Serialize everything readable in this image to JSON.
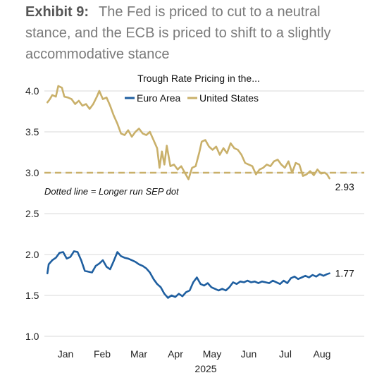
{
  "exhibit": {
    "label": "Exhibit 9:",
    "caption": "The Fed is priced to cut to a neutral stance, and the ECB is priced to shift to a slightly accommodative stance"
  },
  "chart_data": {
    "type": "line",
    "title": "Trough Rate Pricing in the...",
    "xlabel": "2025",
    "ylabel": "",
    "ylim": [
      1.0,
      4.0
    ],
    "y_ticks": [
      "1.0",
      "1.5",
      "2.0",
      "2.5",
      "3.0",
      "3.5",
      "4.0"
    ],
    "x_tick_labels": [
      "Jan",
      "Feb",
      "Mar",
      "Apr",
      "May",
      "Jun",
      "Jul",
      "Aug"
    ],
    "x_range": [
      "2025-01-01",
      "2025-08-23"
    ],
    "grid": true,
    "legend_position": "top-center",
    "series": [
      {
        "name": "Euro Area",
        "color": "#1f5fa0",
        "end_label": "1.77",
        "points": [
          [
            "2025-01-01",
            1.77
          ],
          [
            "2025-01-02",
            1.88
          ],
          [
            "2025-01-05",
            1.93
          ],
          [
            "2025-01-08",
            1.96
          ],
          [
            "2025-01-11",
            2.02
          ],
          [
            "2025-01-14",
            2.03
          ],
          [
            "2025-01-17",
            1.95
          ],
          [
            "2025-01-20",
            1.97
          ],
          [
            "2025-01-23",
            2.04
          ],
          [
            "2025-01-26",
            2.03
          ],
          [
            "2025-01-29",
            1.93
          ],
          [
            "2025-02-01",
            1.8
          ],
          [
            "2025-02-04",
            1.79
          ],
          [
            "2025-02-07",
            1.78
          ],
          [
            "2025-02-10",
            1.86
          ],
          [
            "2025-02-13",
            1.89
          ],
          [
            "2025-02-16",
            1.93
          ],
          [
            "2025-02-19",
            1.85
          ],
          [
            "2025-02-22",
            1.82
          ],
          [
            "2025-02-25",
            1.92
          ],
          [
            "2025-02-28",
            2.03
          ],
          [
            "2025-03-03",
            1.98
          ],
          [
            "2025-03-06",
            1.96
          ],
          [
            "2025-03-09",
            1.95
          ],
          [
            "2025-03-12",
            1.93
          ],
          [
            "2025-03-15",
            1.91
          ],
          [
            "2025-03-18",
            1.88
          ],
          [
            "2025-03-21",
            1.86
          ],
          [
            "2025-03-24",
            1.83
          ],
          [
            "2025-03-27",
            1.78
          ],
          [
            "2025-03-30",
            1.7
          ],
          [
            "2025-04-02",
            1.64
          ],
          [
            "2025-04-05",
            1.6
          ],
          [
            "2025-04-08",
            1.52
          ],
          [
            "2025-04-11",
            1.47
          ],
          [
            "2025-04-14",
            1.5
          ],
          [
            "2025-04-17",
            1.48
          ],
          [
            "2025-04-20",
            1.52
          ],
          [
            "2025-04-23",
            1.49
          ],
          [
            "2025-04-26",
            1.54
          ],
          [
            "2025-04-29",
            1.56
          ],
          [
            "2025-05-02",
            1.66
          ],
          [
            "2025-05-05",
            1.72
          ],
          [
            "2025-05-08",
            1.64
          ],
          [
            "2025-05-11",
            1.62
          ],
          [
            "2025-05-14",
            1.65
          ],
          [
            "2025-05-17",
            1.6
          ],
          [
            "2025-05-20",
            1.58
          ],
          [
            "2025-05-23",
            1.56
          ],
          [
            "2025-05-26",
            1.58
          ],
          [
            "2025-05-29",
            1.56
          ],
          [
            "2025-06-01",
            1.6
          ],
          [
            "2025-06-04",
            1.66
          ],
          [
            "2025-06-07",
            1.64
          ],
          [
            "2025-06-10",
            1.67
          ],
          [
            "2025-06-13",
            1.66
          ],
          [
            "2025-06-16",
            1.68
          ],
          [
            "2025-06-19",
            1.66
          ],
          [
            "2025-06-22",
            1.67
          ],
          [
            "2025-06-25",
            1.65
          ],
          [
            "2025-06-28",
            1.67
          ],
          [
            "2025-07-01",
            1.66
          ],
          [
            "2025-07-04",
            1.65
          ],
          [
            "2025-07-07",
            1.68
          ],
          [
            "2025-07-10",
            1.66
          ],
          [
            "2025-07-13",
            1.64
          ],
          [
            "2025-07-16",
            1.68
          ],
          [
            "2025-07-19",
            1.65
          ],
          [
            "2025-07-22",
            1.71
          ],
          [
            "2025-07-25",
            1.73
          ],
          [
            "2025-07-28",
            1.7
          ],
          [
            "2025-07-31",
            1.72
          ],
          [
            "2025-08-03",
            1.74
          ],
          [
            "2025-08-06",
            1.72
          ],
          [
            "2025-08-09",
            1.75
          ],
          [
            "2025-08-12",
            1.73
          ],
          [
            "2025-08-15",
            1.76
          ],
          [
            "2025-08-18",
            1.74
          ],
          [
            "2025-08-21",
            1.76
          ],
          [
            "2025-08-23",
            1.77
          ]
        ]
      },
      {
        "name": "United States",
        "color": "#c9b06a",
        "end_label": "2.93",
        "points": [
          [
            "2025-01-01",
            3.86
          ],
          [
            "2025-01-03",
            3.9
          ],
          [
            "2025-01-05",
            3.95
          ],
          [
            "2025-01-08",
            3.93
          ],
          [
            "2025-01-10",
            4.06
          ],
          [
            "2025-01-13",
            4.04
          ],
          [
            "2025-01-15",
            3.93
          ],
          [
            "2025-01-18",
            3.92
          ],
          [
            "2025-01-21",
            3.9
          ],
          [
            "2025-01-24",
            3.84
          ],
          [
            "2025-01-27",
            3.88
          ],
          [
            "2025-01-30",
            3.82
          ],
          [
            "2025-02-02",
            3.84
          ],
          [
            "2025-02-05",
            3.78
          ],
          [
            "2025-02-08",
            3.84
          ],
          [
            "2025-02-11",
            3.93
          ],
          [
            "2025-02-13",
            4.0
          ],
          [
            "2025-02-16",
            3.9
          ],
          [
            "2025-02-19",
            3.92
          ],
          [
            "2025-02-22",
            3.82
          ],
          [
            "2025-02-25",
            3.7
          ],
          [
            "2025-02-28",
            3.6
          ],
          [
            "2025-03-03",
            3.48
          ],
          [
            "2025-03-06",
            3.46
          ],
          [
            "2025-03-09",
            3.52
          ],
          [
            "2025-03-12",
            3.44
          ],
          [
            "2025-03-15",
            3.5
          ],
          [
            "2025-03-18",
            3.54
          ],
          [
            "2025-03-21",
            3.48
          ],
          [
            "2025-03-24",
            3.46
          ],
          [
            "2025-03-27",
            3.5
          ],
          [
            "2025-03-30",
            3.4
          ],
          [
            "2025-04-02",
            3.3
          ],
          [
            "2025-04-04",
            3.06
          ],
          [
            "2025-04-06",
            3.26
          ],
          [
            "2025-04-08",
            3.1
          ],
          [
            "2025-04-10",
            3.33
          ],
          [
            "2025-04-13",
            3.08
          ],
          [
            "2025-04-16",
            3.1
          ],
          [
            "2025-04-19",
            3.04
          ],
          [
            "2025-04-22",
            3.08
          ],
          [
            "2025-04-25",
            3.0
          ],
          [
            "2025-04-28",
            2.92
          ],
          [
            "2025-05-01",
            3.06
          ],
          [
            "2025-05-04",
            3.08
          ],
          [
            "2025-05-07",
            3.25
          ],
          [
            "2025-05-09",
            3.38
          ],
          [
            "2025-05-12",
            3.4
          ],
          [
            "2025-05-15",
            3.32
          ],
          [
            "2025-05-18",
            3.28
          ],
          [
            "2025-05-21",
            3.32
          ],
          [
            "2025-05-24",
            3.22
          ],
          [
            "2025-05-27",
            3.3
          ],
          [
            "2025-05-30",
            3.24
          ],
          [
            "2025-06-02",
            3.36
          ],
          [
            "2025-06-05",
            3.3
          ],
          [
            "2025-06-08",
            3.28
          ],
          [
            "2025-06-11",
            3.22
          ],
          [
            "2025-06-14",
            3.12
          ],
          [
            "2025-06-17",
            3.1
          ],
          [
            "2025-06-20",
            3.08
          ],
          [
            "2025-06-23",
            2.98
          ],
          [
            "2025-06-26",
            3.04
          ],
          [
            "2025-06-29",
            3.06
          ],
          [
            "2025-07-02",
            3.1
          ],
          [
            "2025-07-05",
            3.08
          ],
          [
            "2025-07-08",
            3.14
          ],
          [
            "2025-07-11",
            3.16
          ],
          [
            "2025-07-14",
            3.1
          ],
          [
            "2025-07-17",
            3.06
          ],
          [
            "2025-07-20",
            3.14
          ],
          [
            "2025-07-23",
            3.0
          ],
          [
            "2025-07-26",
            3.12
          ],
          [
            "2025-07-29",
            3.1
          ],
          [
            "2025-08-01",
            2.96
          ],
          [
            "2025-08-04",
            2.98
          ],
          [
            "2025-08-07",
            3.02
          ],
          [
            "2025-08-10",
            2.97
          ],
          [
            "2025-08-13",
            3.04
          ],
          [
            "2025-08-16",
            2.99
          ],
          [
            "2025-08-19",
            3.0
          ],
          [
            "2025-08-21",
            2.98
          ],
          [
            "2025-08-23",
            2.93
          ]
        ]
      }
    ],
    "reference_line": {
      "value": 3.0,
      "style": "dashed",
      "color": "#c9b06a",
      "annotation": "Dotted line = Longer run SEP dot"
    }
  }
}
